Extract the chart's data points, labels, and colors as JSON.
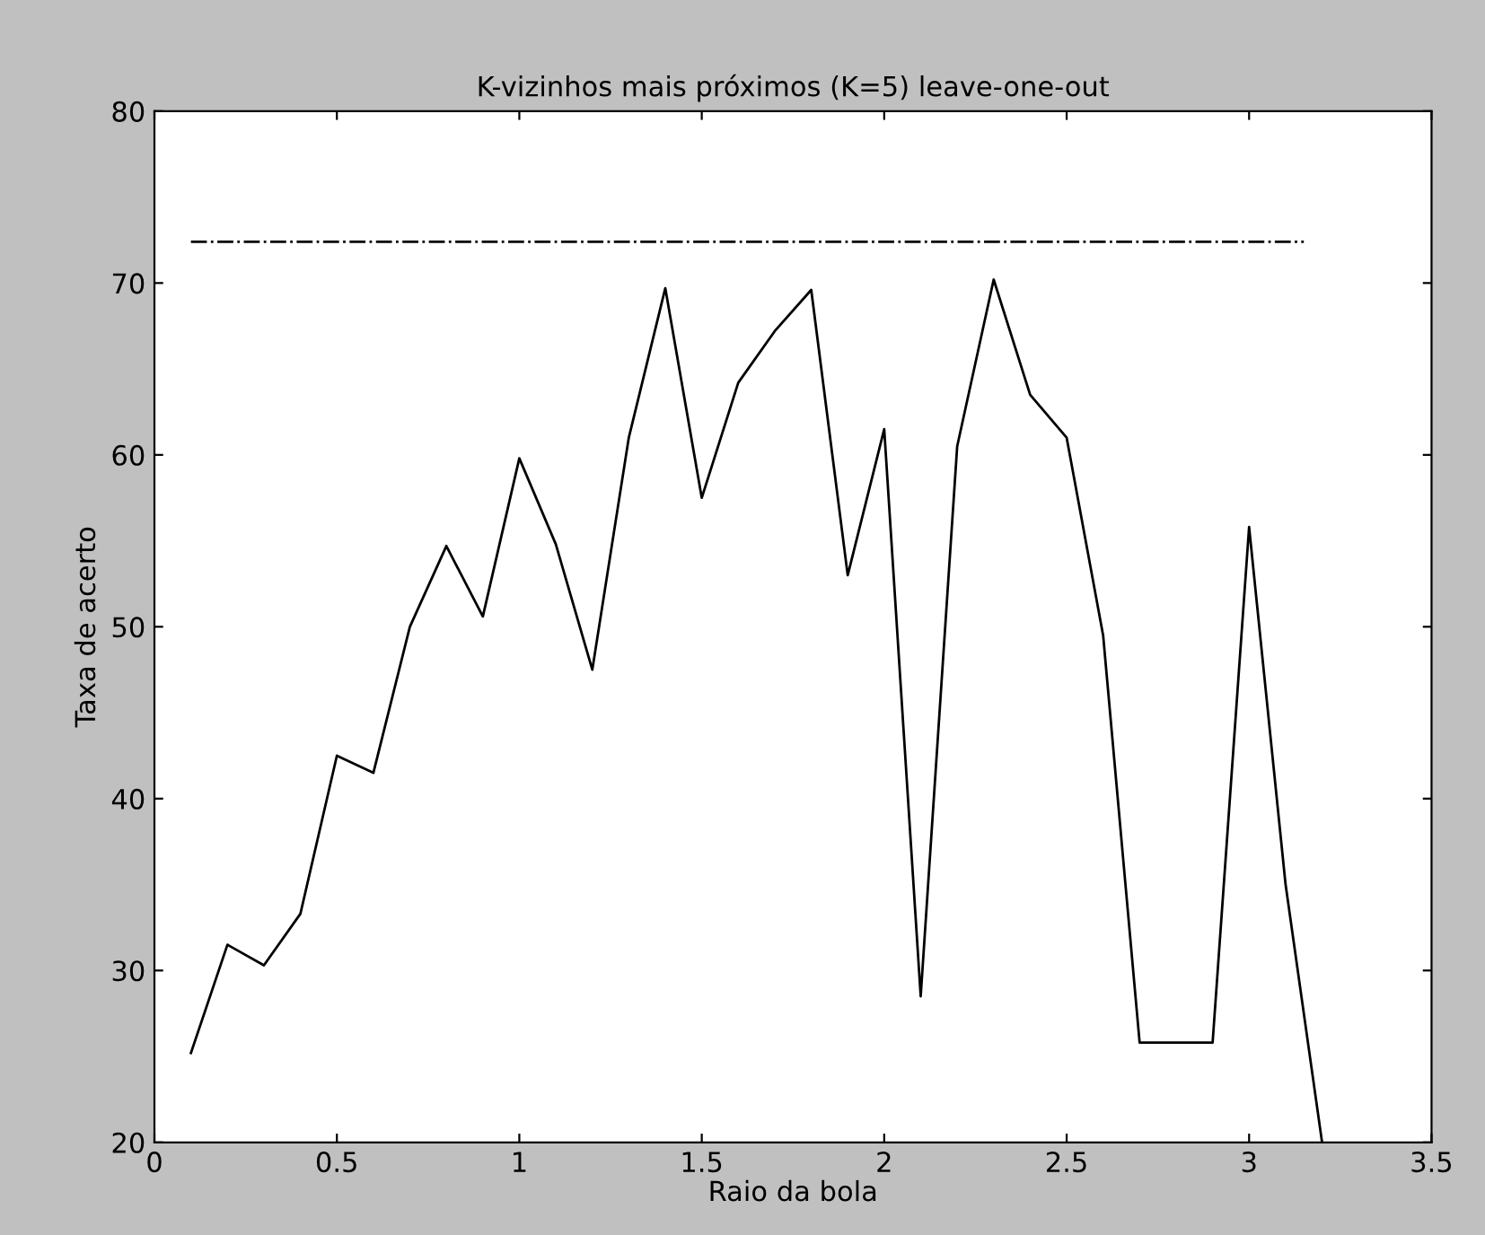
{
  "chart_data": {
    "type": "line",
    "title": "K-vizinhos mais próximos (K=5) leave-one-out",
    "xlabel": "Raio da bola",
    "ylabel": "Taxa de acerto",
    "xlim": [
      0,
      3.5
    ],
    "xticks": [
      0,
      0.5,
      1,
      1.5,
      2,
      2.5,
      3,
      3.5
    ],
    "ylim": [
      20,
      80
    ],
    "yticks": [
      20,
      30,
      40,
      50,
      60,
      70,
      80
    ],
    "grid": false,
    "legend": false,
    "series": [
      {
        "color": "#000000",
        "line_style": "solid",
        "x": [
          0.1,
          0.2,
          0.3,
          0.4,
          0.5,
          0.6,
          0.7,
          0.8,
          0.9,
          1.0,
          1.1,
          1.2,
          1.3,
          1.4,
          1.5,
          1.6,
          1.7,
          1.8,
          1.9,
          2.0,
          2.1,
          2.2,
          2.3,
          2.4,
          2.5,
          2.6,
          2.7,
          2.8,
          2.9,
          3.0,
          3.1,
          3.2
        ],
        "values": [
          25.2,
          31.5,
          30.3,
          33.3,
          42.5,
          41.5,
          50,
          54.7,
          50.6,
          59.8,
          54.8,
          47.5,
          61,
          69.7,
          57.5,
          64.2,
          67.2,
          69.6,
          53,
          61.5,
          28.5,
          60.5,
          70.2,
          63.5,
          61,
          49.5,
          25.8,
          25.8,
          25.8,
          55.8,
          35,
          20
        ]
      },
      {
        "color": "#000000",
        "line_style": "dashdot",
        "x": [
          0.1,
          3.15
        ],
        "values": [
          72.4,
          72.4
        ]
      }
    ]
  }
}
